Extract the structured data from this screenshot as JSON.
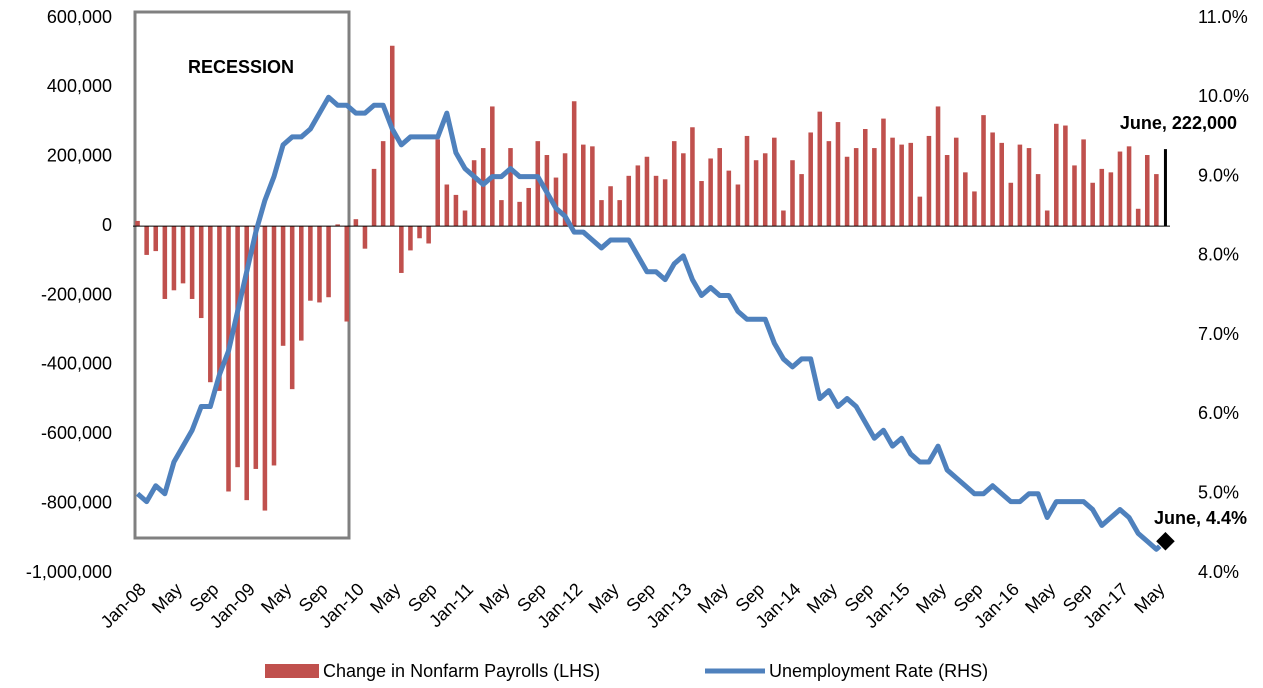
{
  "chart_data": {
    "type": "bar_line",
    "annotations": [
      "RECESSION",
      "June, 222,000",
      "June, 4.4%"
    ],
    "categories": [
      "Jan-08",
      null,
      null,
      null,
      "May",
      null,
      null,
      null,
      "Sep",
      null,
      null,
      null,
      "Jan-09",
      null,
      null,
      null,
      "May",
      null,
      null,
      null,
      "Sep",
      null,
      null,
      null,
      "Jan-10",
      null,
      null,
      null,
      "May",
      null,
      null,
      null,
      "Sep",
      null,
      null,
      null,
      "Jan-11",
      null,
      null,
      null,
      "May",
      null,
      null,
      null,
      "Sep",
      null,
      null,
      null,
      "Jan-12",
      null,
      null,
      null,
      "May",
      null,
      null,
      null,
      "Sep",
      null,
      null,
      null,
      "Jan-13",
      null,
      null,
      null,
      "May",
      null,
      null,
      null,
      "Sep",
      null,
      null,
      null,
      "Jan-14",
      null,
      null,
      null,
      "May",
      null,
      null,
      null,
      "Sep",
      null,
      null,
      null,
      "Jan-15",
      null,
      null,
      null,
      "May",
      null,
      null,
      null,
      "Sep",
      null,
      null,
      null,
      "Jan-16",
      null,
      null,
      null,
      "May",
      null,
      null,
      null,
      "Sep",
      null,
      null,
      null,
      "Jan-17",
      null,
      null,
      null,
      "May",
      null
    ],
    "series": [
      {
        "name": "Change in Nonfarm Payrolls (LHS)",
        "type": "bar",
        "color": "#c0504d",
        "highlight_color": "#000000",
        "values": [
          15000,
          -83000,
          -72000,
          -210000,
          -185000,
          -165000,
          -210000,
          -265000,
          -450000,
          -475000,
          -765000,
          -695000,
          -790000,
          -700000,
          -820000,
          -690000,
          -345000,
          -470000,
          -330000,
          -215000,
          -220000,
          -205000,
          5000,
          -275000,
          20000,
          -65000,
          165000,
          245000,
          520000,
          -135000,
          -70000,
          -35000,
          -50000,
          250000,
          120000,
          90000,
          45000,
          190000,
          225000,
          345000,
          75000,
          225000,
          70000,
          110000,
          245000,
          205000,
          140000,
          210000,
          360000,
          235000,
          230000,
          75000,
          115000,
          75000,
          145000,
          175000,
          200000,
          145000,
          135000,
          245000,
          210000,
          285000,
          130000,
          195000,
          225000,
          160000,
          120000,
          260000,
          190000,
          210000,
          255000,
          45000,
          190000,
          150000,
          270000,
          330000,
          245000,
          300000,
          200000,
          225000,
          280000,
          225000,
          310000,
          255000,
          235000,
          240000,
          85000,
          260000,
          345000,
          205000,
          255000,
          155000,
          100000,
          320000,
          270000,
          240000,
          125000,
          235000,
          225000,
          150000,
          45000,
          295000,
          290000,
          175000,
          250000,
          125000,
          165000,
          155000,
          215000,
          230000,
          50000,
          205000,
          150000,
          222000
        ]
      },
      {
        "name": "Unemployment Rate (RHS)",
        "type": "line",
        "axis": "y2",
        "color": "#4f81bd",
        "values": [
          5.0,
          4.9,
          5.1,
          5.0,
          5.4,
          5.6,
          5.8,
          6.1,
          6.1,
          6.5,
          6.8,
          7.3,
          7.8,
          8.3,
          8.7,
          9.0,
          9.4,
          9.5,
          9.5,
          9.6,
          9.8,
          10.0,
          9.9,
          9.9,
          9.8,
          9.8,
          9.9,
          9.9,
          9.6,
          9.4,
          9.5,
          9.5,
          9.5,
          9.5,
          9.8,
          9.3,
          9.1,
          9.0,
          8.9,
          9.0,
          9.0,
          9.1,
          9.0,
          9.0,
          9.0,
          8.8,
          8.6,
          8.5,
          8.3,
          8.3,
          8.2,
          8.1,
          8.2,
          8.2,
          8.2,
          8.0,
          7.8,
          7.8,
          7.7,
          7.9,
          8.0,
          7.7,
          7.5,
          7.6,
          7.5,
          7.5,
          7.3,
          7.2,
          7.2,
          7.2,
          6.9,
          6.7,
          6.6,
          6.7,
          6.7,
          6.2,
          6.3,
          6.1,
          6.2,
          6.1,
          5.9,
          5.7,
          5.8,
          5.6,
          5.7,
          5.5,
          5.4,
          5.4,
          5.6,
          5.3,
          5.2,
          5.1,
          5.0,
          5.0,
          5.1,
          5.0,
          4.9,
          4.9,
          5.0,
          5.0,
          4.7,
          4.9,
          4.9,
          4.9,
          4.9,
          4.8,
          4.6,
          4.7,
          4.8,
          4.7,
          4.5,
          4.4,
          4.3,
          4.4
        ]
      }
    ],
    "ylim": [
      -1000000,
      600000
    ],
    "yticks": [
      {
        "value": -1000000,
        "label": "-1,000,000"
      },
      {
        "value": -800000,
        "label": "-800,000"
      },
      {
        "value": -600000,
        "label": "-600,000"
      },
      {
        "value": -400000,
        "label": "-400,000"
      },
      {
        "value": -200000,
        "label": "-200,000"
      },
      0,
      {
        "value": 200000,
        "label": "200,000"
      },
      {
        "value": 400000,
        "label": "400,000"
      },
      {
        "value": 600000,
        "label": "600,000"
      }
    ],
    "y2lim": [
      4,
      11
    ],
    "y2ticks": [
      {
        "value": 4,
        "label": "4.0%"
      },
      {
        "value": 5,
        "label": "5.0%"
      },
      {
        "value": 6,
        "label": "6.0%"
      },
      {
        "value": 7,
        "label": "7.0%"
      },
      {
        "value": 8,
        "label": "8.0%"
      },
      {
        "value": 9,
        "label": "9.0%"
      },
      {
        "value": 10,
        "label": "10.0%"
      },
      {
        "value": 11,
        "label": "11.0%"
      }
    ],
    "grid": false
  }
}
